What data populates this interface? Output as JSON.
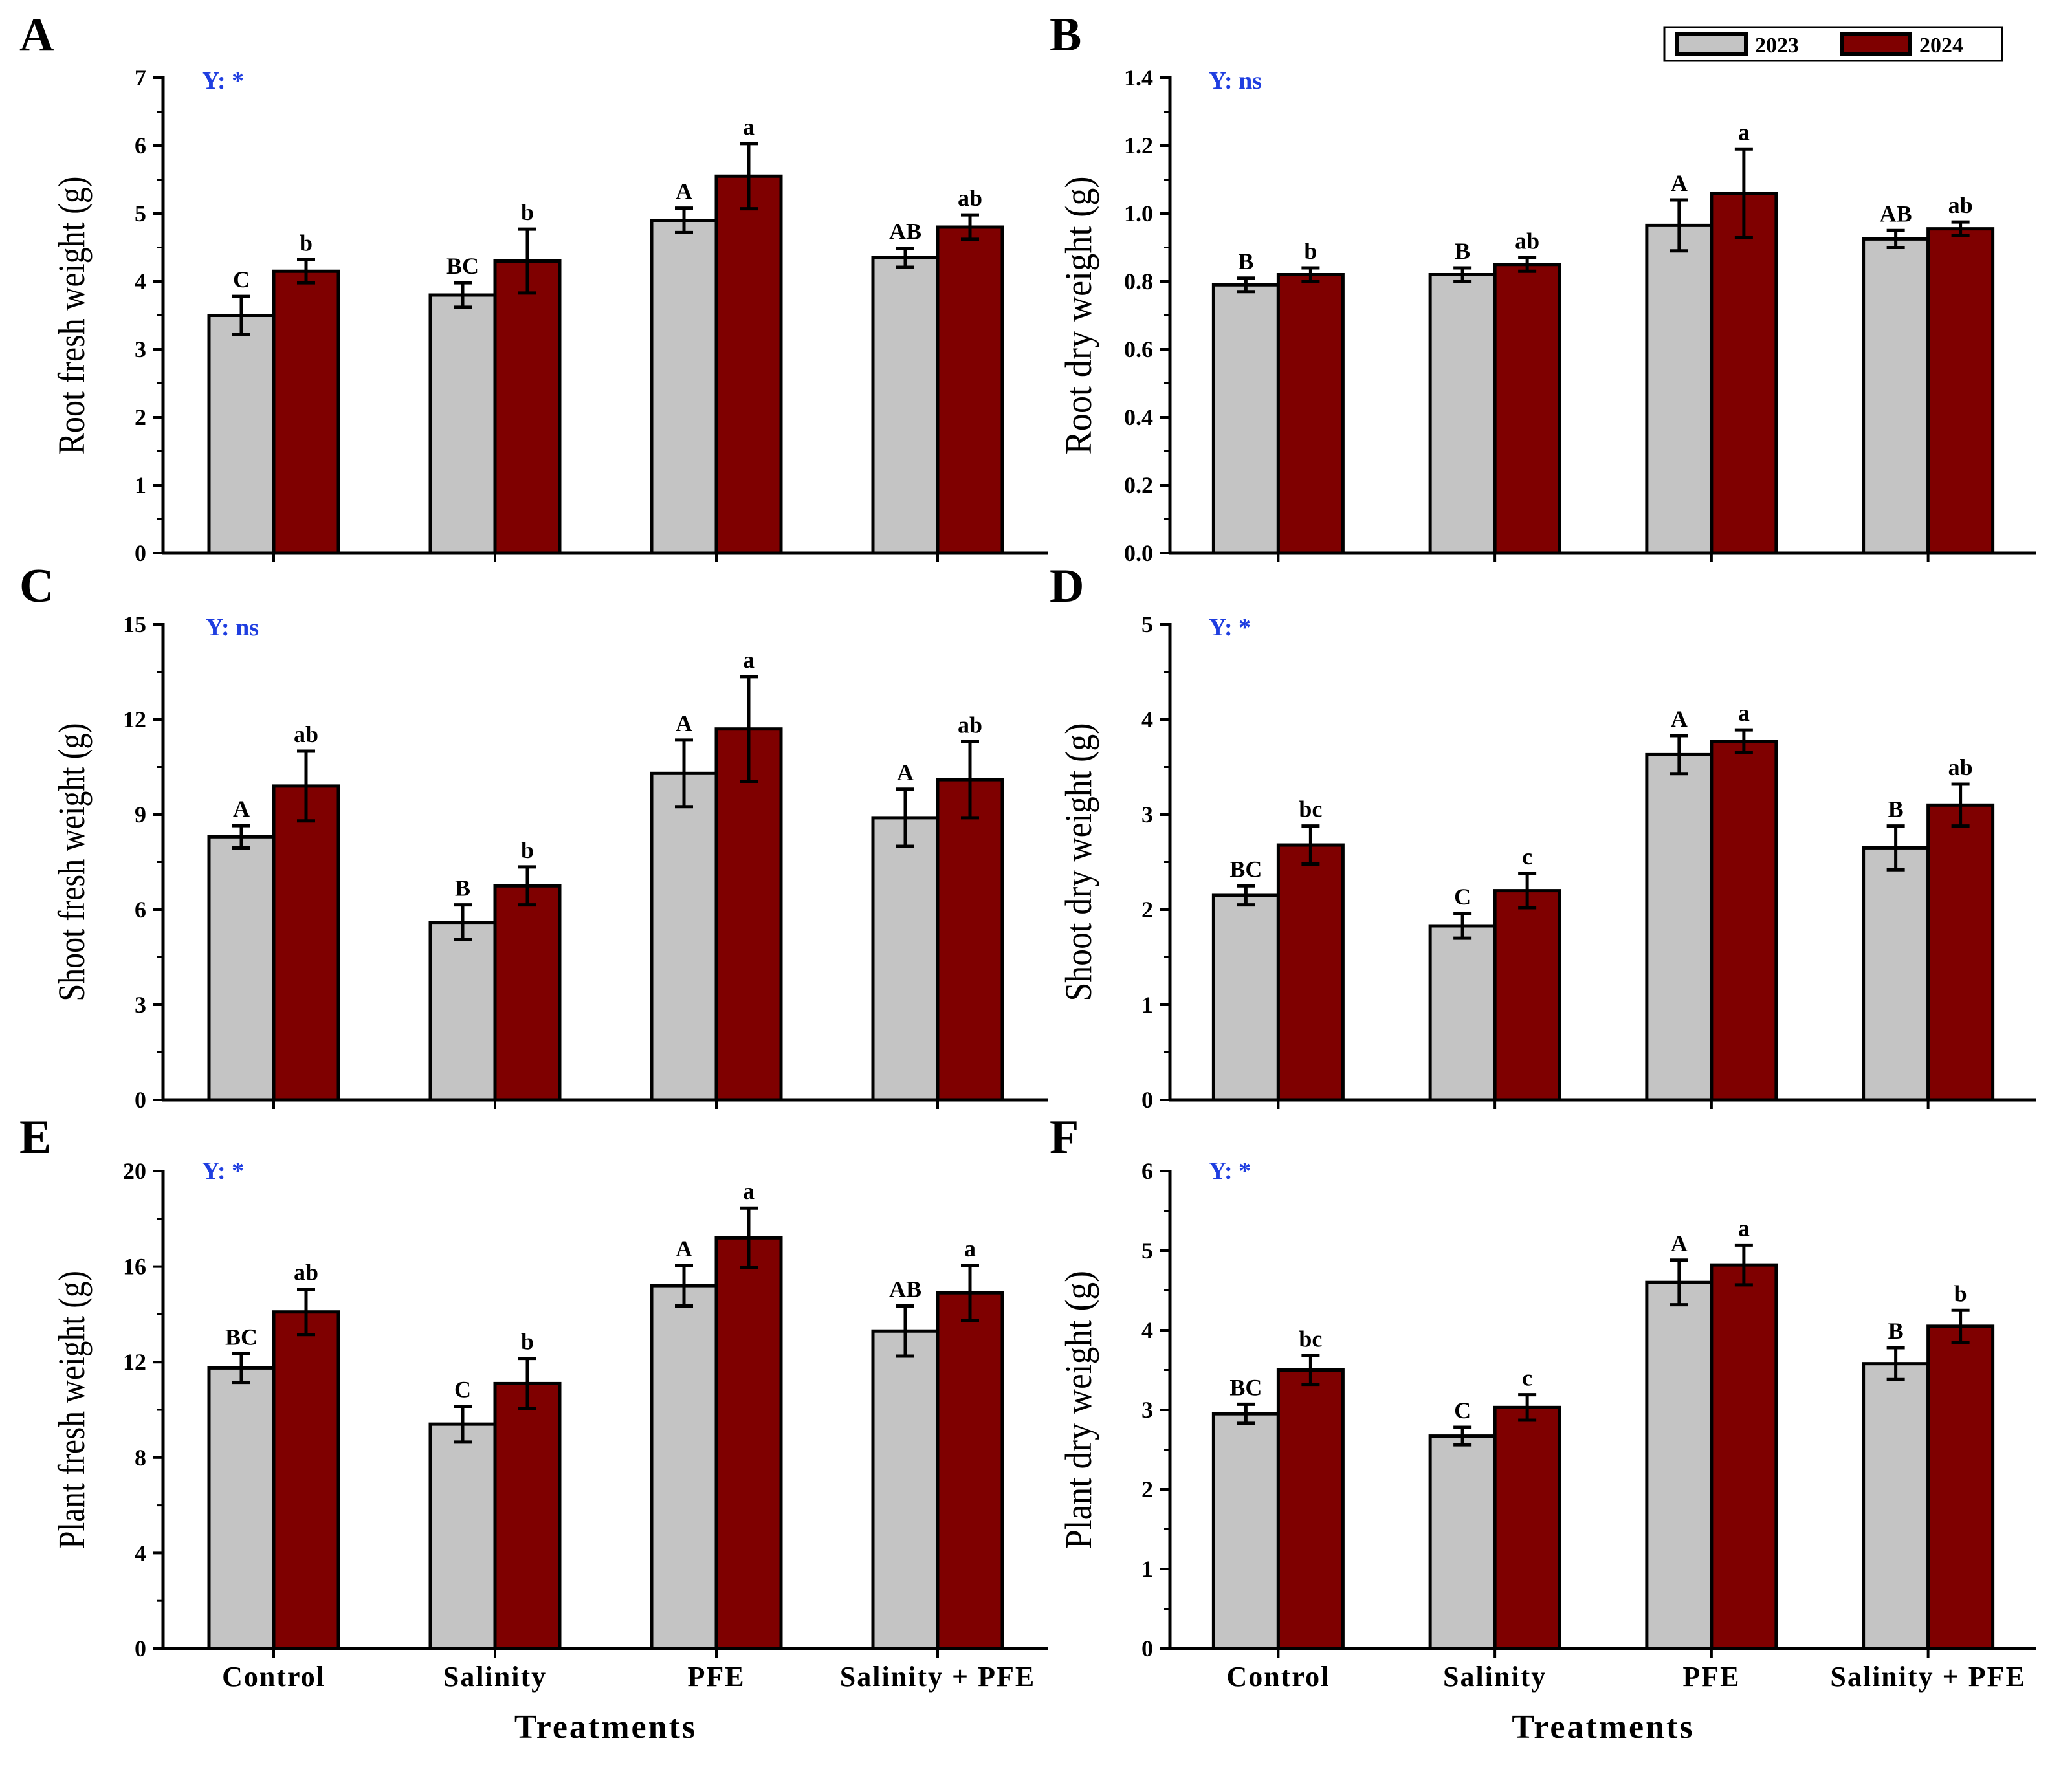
{
  "colors": {
    "y2023": "#c4c4c4",
    "y2024": "#7f0000",
    "sig": "#1f3ee0"
  },
  "legend": {
    "labels": [
      "2023",
      "2024"
    ]
  },
  "shared": {
    "categories": [
      "Control",
      "Salinity",
      "PFE",
      "Salinity + PFE"
    ],
    "xlabel": "Treatments"
  },
  "chart_data": [
    {
      "type": "bar",
      "panel": "A",
      "significance": "Y: *",
      "ylabel": "Root fresh weight (g)",
      "ylim": [
        0,
        7
      ],
      "yticks": [
        "0",
        "1",
        "2",
        "3",
        "4",
        "5",
        "6",
        "7"
      ],
      "ytick_values": [
        0,
        1,
        2,
        3,
        4,
        5,
        6,
        7
      ],
      "categories": [
        "Control",
        "Salinity",
        "PFE",
        "Salinity + PFE"
      ],
      "series": [
        {
          "name": "2023",
          "values": [
            3.5,
            3.8,
            4.9,
            4.35
          ],
          "errors": [
            0.28,
            0.18,
            0.18,
            0.14
          ],
          "letters": [
            "C",
            "BC",
            "A",
            "AB"
          ]
        },
        {
          "name": "2024",
          "values": [
            4.15,
            4.3,
            5.55,
            4.8
          ],
          "errors": [
            0.17,
            0.47,
            0.48,
            0.18
          ],
          "letters": [
            "b",
            "b",
            "a",
            "ab"
          ]
        }
      ]
    },
    {
      "type": "bar",
      "panel": "B",
      "significance": "Y: ns",
      "ylabel": "Root dry weight (g)",
      "ylim": [
        0,
        1.4
      ],
      "yticks": [
        "0.0",
        "0.2",
        "0.4",
        "0.6",
        "0.8",
        "1.0",
        "1.2",
        "1.4"
      ],
      "ytick_values": [
        0,
        0.2,
        0.4,
        0.6,
        0.8,
        1.0,
        1.2,
        1.4
      ],
      "categories": [
        "Control",
        "Salinity",
        "PFE",
        "Salinity + PFE"
      ],
      "series": [
        {
          "name": "2023",
          "values": [
            0.79,
            0.82,
            0.965,
            0.925
          ],
          "errors": [
            0.02,
            0.02,
            0.075,
            0.025
          ],
          "letters": [
            "B",
            "B",
            "A",
            "AB"
          ]
        },
        {
          "name": "2024",
          "values": [
            0.82,
            0.85,
            1.06,
            0.955
          ],
          "errors": [
            0.02,
            0.02,
            0.13,
            0.02
          ],
          "letters": [
            "b",
            "ab",
            "a",
            "ab"
          ]
        }
      ]
    },
    {
      "type": "bar",
      "panel": "C",
      "significance": "Y: ns",
      "ylabel": "Shoot fresh weight (g)",
      "ylim": [
        0,
        15
      ],
      "yticks": [
        "0",
        "3",
        "6",
        "9",
        "12",
        "15"
      ],
      "ytick_values": [
        0,
        3,
        6,
        9,
        12,
        15
      ],
      "categories": [
        "Control",
        "Salinity",
        "PFE",
        "Salinity + PFE"
      ],
      "series": [
        {
          "name": "2023",
          "values": [
            8.3,
            5.6,
            10.3,
            8.9
          ],
          "errors": [
            0.35,
            0.55,
            1.05,
            0.9
          ],
          "letters": [
            "A",
            "B",
            "A",
            "A"
          ]
        },
        {
          "name": "2024",
          "values": [
            9.9,
            6.75,
            11.7,
            10.1
          ],
          "errors": [
            1.1,
            0.6,
            1.65,
            1.2
          ],
          "letters": [
            "ab",
            "b",
            "a",
            "ab"
          ]
        }
      ]
    },
    {
      "type": "bar",
      "panel": "D",
      "significance": "Y: *",
      "ylabel": "Shoot dry weight (g)",
      "ylim": [
        0,
        5
      ],
      "yticks": [
        "0",
        "1",
        "2",
        "3",
        "4",
        "5"
      ],
      "ytick_values": [
        0,
        1,
        2,
        3,
        4,
        5
      ],
      "categories": [
        "Control",
        "Salinity",
        "PFE",
        "Salinity + PFE"
      ],
      "series": [
        {
          "name": "2023",
          "values": [
            2.15,
            1.83,
            3.63,
            2.65
          ],
          "errors": [
            0.1,
            0.13,
            0.2,
            0.23
          ],
          "letters": [
            "BC",
            "C",
            "A",
            "B"
          ]
        },
        {
          "name": "2024",
          "values": [
            2.68,
            2.2,
            3.77,
            3.1
          ],
          "errors": [
            0.2,
            0.18,
            0.12,
            0.22
          ],
          "letters": [
            "bc",
            "c",
            "a",
            "ab"
          ]
        }
      ]
    },
    {
      "type": "bar",
      "panel": "E",
      "significance": "Y: *",
      "ylabel": "Plant fresh weight (g)",
      "ylim": [
        0,
        20
      ],
      "yticks": [
        "0",
        "4",
        "8",
        "12",
        "16",
        "20"
      ],
      "ytick_values": [
        0,
        4,
        8,
        12,
        16,
        20
      ],
      "categories": [
        "Control",
        "Salinity",
        "PFE",
        "Salinity + PFE"
      ],
      "series": [
        {
          "name": "2023",
          "values": [
            11.75,
            9.4,
            15.2,
            13.3
          ],
          "errors": [
            0.6,
            0.75,
            0.85,
            1.05
          ],
          "letters": [
            "BC",
            "C",
            "A",
            "AB"
          ]
        },
        {
          "name": "2024",
          "values": [
            14.1,
            11.1,
            17.2,
            14.9
          ],
          "errors": [
            0.95,
            1.05,
            1.25,
            1.15
          ],
          "letters": [
            "ab",
            "b",
            "a",
            "a"
          ]
        }
      ]
    },
    {
      "type": "bar",
      "panel": "F",
      "significance": "Y: *",
      "ylabel": "Plant dry weight (g)",
      "ylim": [
        0,
        6
      ],
      "yticks": [
        "0",
        "1",
        "2",
        "3",
        "4",
        "5",
        "6"
      ],
      "ytick_values": [
        0,
        1,
        2,
        3,
        4,
        5,
        6
      ],
      "categories": [
        "Control",
        "Salinity",
        "PFE",
        "Salinity + PFE"
      ],
      "series": [
        {
          "name": "2023",
          "values": [
            2.95,
            2.67,
            4.6,
            3.58
          ],
          "errors": [
            0.12,
            0.11,
            0.28,
            0.2
          ],
          "letters": [
            "BC",
            "C",
            "A",
            "B"
          ]
        },
        {
          "name": "2024",
          "values": [
            3.5,
            3.03,
            4.82,
            4.05
          ],
          "errors": [
            0.18,
            0.16,
            0.25,
            0.2
          ],
          "letters": [
            "bc",
            "c",
            "a",
            "b"
          ]
        }
      ]
    }
  ]
}
